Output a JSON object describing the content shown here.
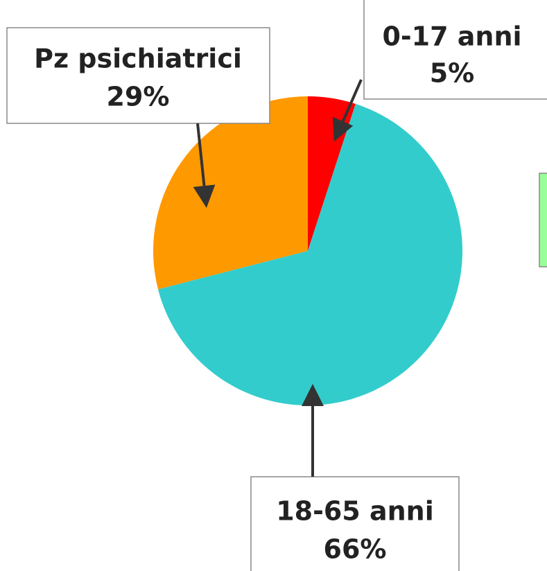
{
  "chart_data": {
    "type": "pie",
    "categories": [
      "0-17 anni",
      "18-65 anni",
      "Pz psichiatrici"
    ],
    "values": [
      5,
      66,
      29
    ],
    "value_labels": [
      "5%",
      "66%",
      "29%"
    ],
    "colors": [
      "#ff0000",
      "#33cccc",
      "#ff9900"
    ]
  }
}
